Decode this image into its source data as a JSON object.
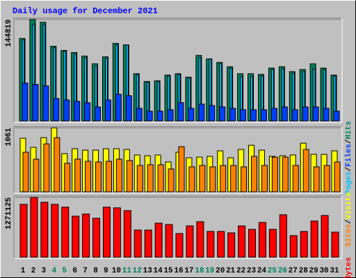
{
  "chart_data": [
    {
      "type": "bar",
      "title": "Daily usage for December 2021",
      "legend_separator": "/",
      "ylim": [
        0,
        144819
      ],
      "yticks": [
        144819
      ],
      "series": [
        {
          "name": "Hits",
          "color": "#00805c",
          "values": [
            117700,
            144819,
            140800,
            106600,
            100600,
            97600,
            92500,
            81500,
            91500,
            110700,
            108600,
            67400,
            56300,
            57300,
            65400,
            67400,
            62400,
            93500,
            88500,
            83500,
            77400,
            67400,
            67400,
            66400,
            75400,
            77400,
            70400,
            73400,
            81500,
            75400,
            65400
          ]
        },
        {
          "name": "Files",
          "color": "#0040ff",
          "values": [
            54000,
            52000,
            50000,
            32000,
            30000,
            28000,
            26000,
            20000,
            30000,
            38000,
            36000,
            18000,
            14000,
            14000,
            16000,
            26000,
            18000,
            24000,
            22000,
            20000,
            18000,
            16000,
            16000,
            16000,
            18000,
            20000,
            16000,
            20000,
            20000,
            18000,
            14000
          ]
        },
        {
          "name": "Pages",
          "color": "#00c0ff",
          "values": [
            115700,
            137800,
            137800,
            104600,
            99600,
            95600,
            90500,
            78500,
            89500,
            108600,
            108600,
            66400,
            55300,
            56300,
            64400,
            66400,
            61400,
            90500,
            88500,
            81500,
            75400,
            63400,
            63400,
            64400,
            73400,
            74400,
            68400,
            70400,
            74400,
            73400,
            64400
          ]
        }
      ]
    },
    {
      "type": "bar",
      "legend_separator": "/",
      "ylim": [
        0,
        1061
      ],
      "yticks": [
        1061
      ],
      "series": [
        {
          "name": "Visits",
          "color": "#ffff00",
          "values": [
            888,
            738,
            899,
            1061,
            634,
            715,
            692,
            692,
            715,
            715,
            703,
            611,
            599,
            611,
            496,
            657,
            565,
            576,
            588,
            680,
            565,
            703,
            772,
            692,
            588,
            599,
            611,
            807,
            622,
            622,
            680
          ]
        },
        {
          "name": "Sites",
          "color": "#ff8000",
          "values": [
            657,
            542,
            795,
            899,
            473,
            542,
            507,
            496,
            507,
            542,
            519,
            438,
            450,
            450,
            380,
            749,
            415,
            438,
            415,
            438,
            438,
            415,
            588,
            438,
            576,
            576,
            438,
            703,
            415,
            438,
            496
          ]
        }
      ]
    },
    {
      "type": "bar",
      "ylim": [
        0,
        1271125
      ],
      "yticks": [
        1271125
      ],
      "categories": [
        "1",
        "2",
        "3",
        "4",
        "5",
        "6",
        "7",
        "8",
        "9",
        "10",
        "11",
        "12",
        "13",
        "14",
        "15",
        "16",
        "17",
        "18",
        "19",
        "20",
        "21",
        "22",
        "23",
        "24",
        "25",
        "26",
        "27",
        "28",
        "29",
        "30",
        "31"
      ],
      "category_colors": [
        "#000000",
        "#000000",
        "#000000",
        "#00805c",
        "#00805c",
        "#000000",
        "#000000",
        "#000000",
        "#000000",
        "#000000",
        "#00805c",
        "#00805c",
        "#000000",
        "#000000",
        "#000000",
        "#000000",
        "#000000",
        "#00805c",
        "#00805c",
        "#000000",
        "#000000",
        "#000000",
        "#000000",
        "#000000",
        "#00805c",
        "#00805c",
        "#000000",
        "#000000",
        "#000000",
        "#000000",
        "#000000"
      ],
      "series": [
        {
          "name": "KBytes",
          "color": "#ff0000",
          "values": [
            1123300,
            1271125,
            1167600,
            1123300,
            1064200,
            872000,
            916400,
            827700,
            1064200,
            1049400,
            990300,
            576400,
            576400,
            724200,
            694700,
            502500,
            665100,
            753800,
            547000,
            547000,
            517300,
            665100,
            591200,
            739000,
            591200,
            901600,
            458200,
            547000,
            768600,
            886800,
            532100
          ]
        }
      ]
    }
  ]
}
